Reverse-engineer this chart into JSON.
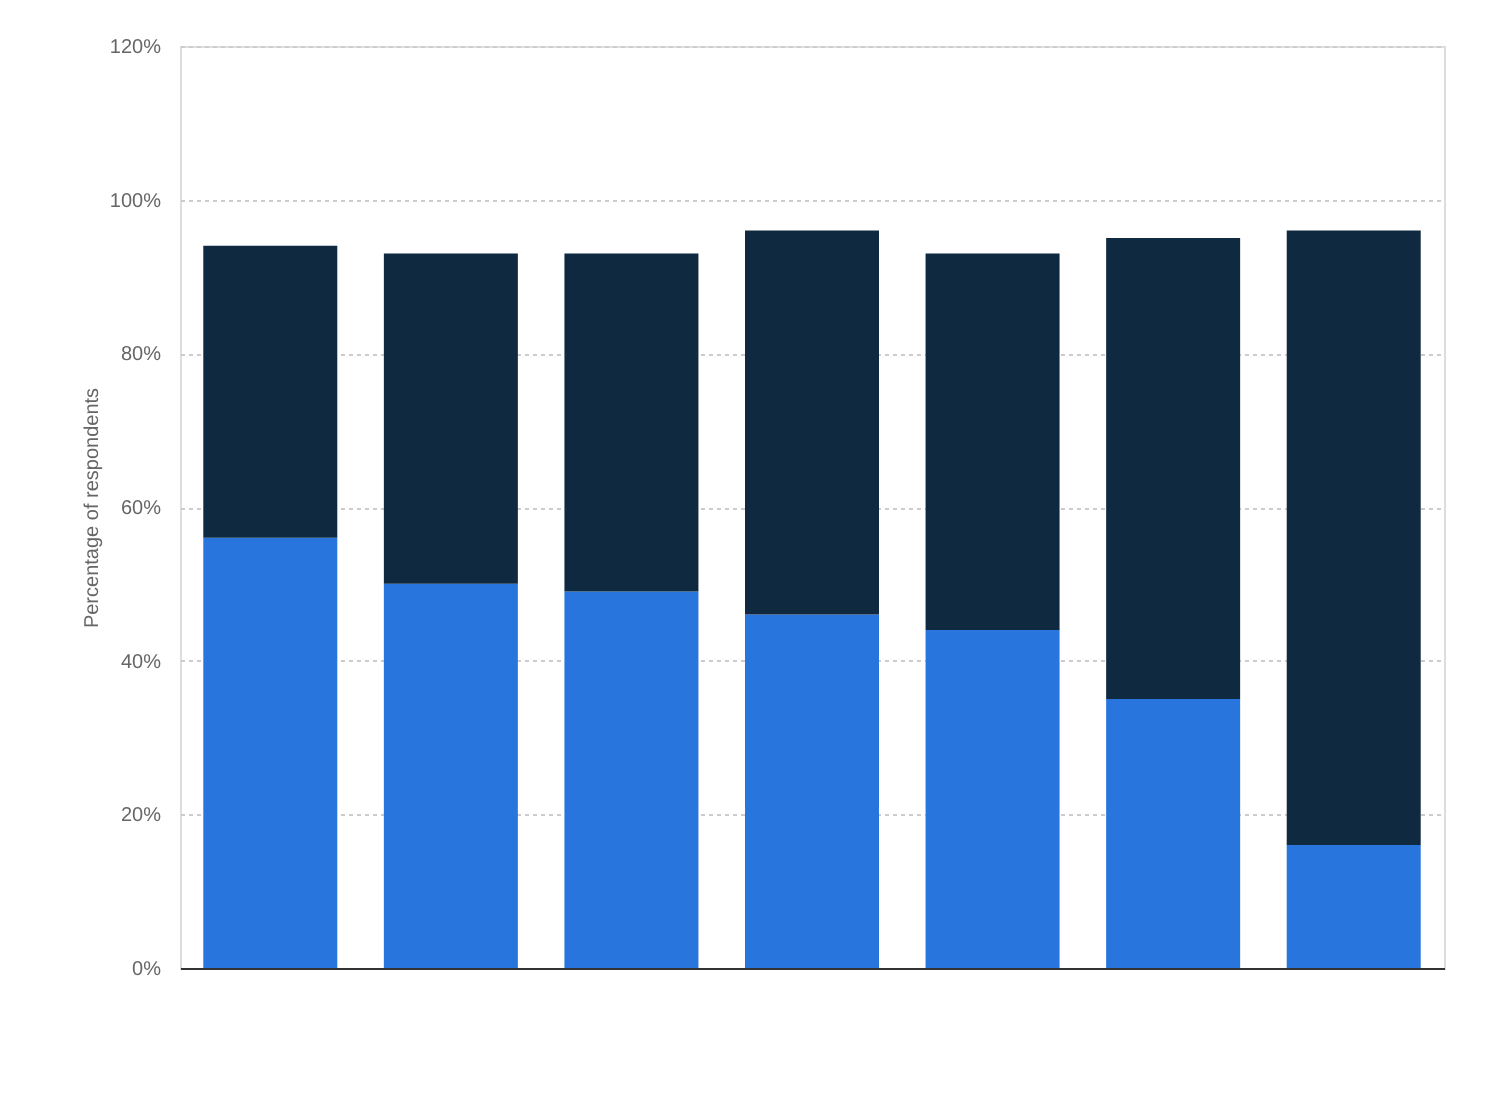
{
  "chart_data": {
    "type": "bar",
    "ylabel": "Percentage of respondents",
    "categories": [
      null,
      null,
      null,
      null,
      null,
      null,
      null
    ],
    "stacked": true,
    "series": [
      {
        "color": "#2876dd",
        "values": [
          56,
          50,
          49,
          46,
          44,
          35,
          16
        ]
      },
      {
        "color": "#0f2a40",
        "values": [
          38,
          43,
          44,
          50,
          49,
          60,
          80
        ]
      }
    ],
    "ylim": [
      0,
      120
    ],
    "yticks": [
      {
        "value": 0,
        "label": "0%"
      },
      {
        "value": 20,
        "label": "20%"
      },
      {
        "value": 40,
        "label": "40%"
      },
      {
        "value": 60,
        "label": "60%"
      },
      {
        "value": 80,
        "label": "80%"
      },
      {
        "value": 100,
        "label": "100%"
      },
      {
        "value": 120,
        "label": "120%"
      }
    ],
    "grid": "y",
    "legend": false,
    "tick_labels": "y"
  }
}
